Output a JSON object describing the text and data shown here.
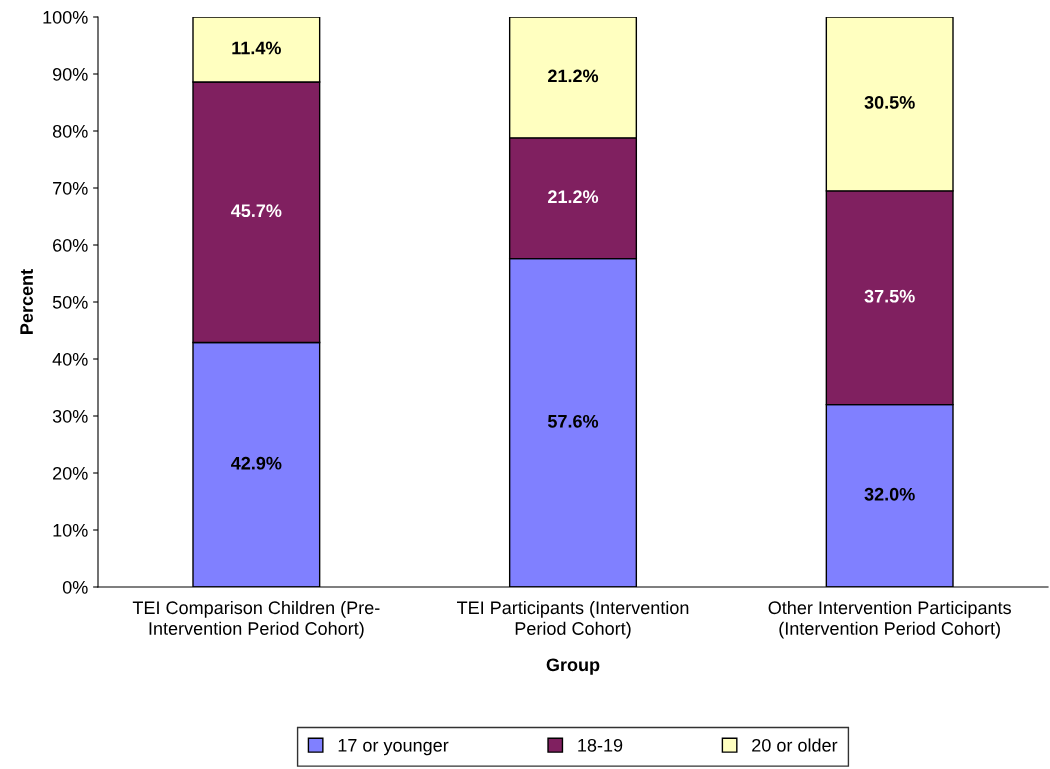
{
  "chart_data": {
    "type": "bar",
    "stacked": true,
    "xlabel": "Group",
    "ylabel": "Percent",
    "categories": [
      "TEI Comparison Children (Pre-\nIntervention Period Cohort)",
      "TEI Participants (Intervention\nPeriod Cohort)",
      "Other Intervention Participants\n(Intervention Period Cohort)"
    ],
    "series": [
      {
        "name": "17 or younger",
        "color": "#8080ff",
        "values": [
          42.9,
          57.6,
          32.0
        ],
        "value_labels": [
          "42.9%",
          "57.6%",
          "32.0%"
        ]
      },
      {
        "name": "18-19",
        "color": "#802060",
        "values": [
          45.7,
          21.2,
          37.5
        ],
        "value_labels": [
          "45.7%",
          "21.2%",
          "37.5%"
        ]
      },
      {
        "name": "20 or older",
        "color": "#ffffc0",
        "values": [
          11.4,
          21.2,
          30.5
        ],
        "value_labels": [
          "11.4%",
          "21.2%",
          "30.5%"
        ]
      }
    ],
    "ylim": [
      0,
      100
    ],
    "yticks": [
      {
        "value": 0,
        "label": "0%"
      },
      {
        "value": 10,
        "label": "10%"
      },
      {
        "value": 20,
        "label": "20%"
      },
      {
        "value": 30,
        "label": "30%"
      },
      {
        "value": 40,
        "label": "40%"
      },
      {
        "value": 50,
        "label": "50%"
      },
      {
        "value": 60,
        "label": "60%"
      },
      {
        "value": 70,
        "label": "70%"
      },
      {
        "value": 80,
        "label": "80%"
      },
      {
        "value": 90,
        "label": "90%"
      },
      {
        "value": 100,
        "label": "100%"
      }
    ],
    "legend": "bottom",
    "grid": false
  }
}
